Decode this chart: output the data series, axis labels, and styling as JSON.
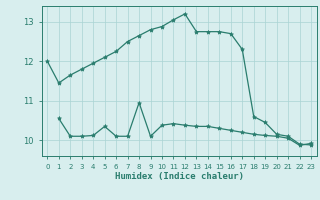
{
  "xlabel": "Humidex (Indice chaleur)",
  "x_values": [
    0,
    1,
    2,
    3,
    4,
    5,
    6,
    7,
    8,
    9,
    10,
    11,
    12,
    13,
    14,
    15,
    16,
    17,
    18,
    19,
    20,
    21,
    22,
    23
  ],
  "line1_y": [
    12.0,
    11.45,
    11.65,
    11.8,
    11.95,
    12.1,
    12.25,
    12.5,
    12.65,
    12.8,
    12.88,
    13.05,
    13.2,
    12.75,
    12.75,
    12.75,
    12.7,
    12.3,
    10.6,
    10.45,
    10.15,
    10.1,
    9.9,
    9.88
  ],
  "line2_y": [
    null,
    10.55,
    10.1,
    10.1,
    10.12,
    10.35,
    10.1,
    10.1,
    10.95,
    10.1,
    10.38,
    10.42,
    10.38,
    10.35,
    10.35,
    10.3,
    10.25,
    10.2,
    10.15,
    10.12,
    10.1,
    10.05,
    9.87,
    9.92
  ],
  "line_color": "#2a7d6e",
  "bg_color": "#d8eeee",
  "grid_color": "#aad4d4",
  "tick_color": "#2a7d6e",
  "ylim_min": 9.6,
  "ylim_max": 13.4,
  "yticks": [
    10,
    11,
    12,
    13
  ]
}
